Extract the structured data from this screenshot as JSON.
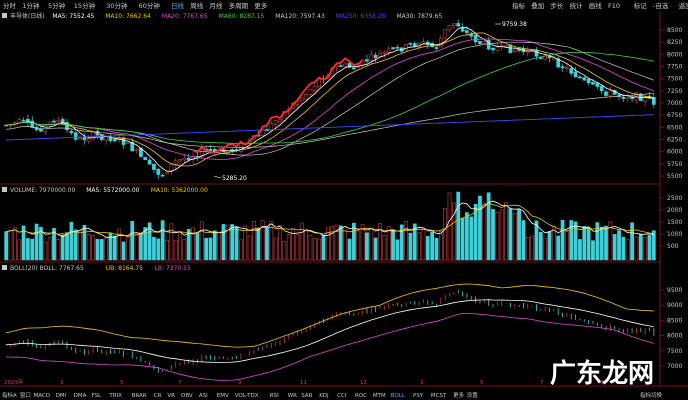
{
  "toolbar_left": {
    "items": [
      "分时",
      "1分钟",
      "5分钟",
      "15分钟",
      "30分钟",
      "60分钟",
      "日线",
      "周线",
      "月线",
      "多周期",
      "更多"
    ],
    "active": "日线"
  },
  "toolbar_right": {
    "items": [
      "指标",
      "叠加",
      "步长",
      "统计",
      "画线",
      "F10",
      "标记",
      "-自选",
      "返回"
    ]
  },
  "price_legend": {
    "label": "丰导体(日线)",
    "entries": [
      {
        "text": "MA5: 7552.45",
        "color": "#ffffff"
      },
      {
        "text": "MA10: 7662.64",
        "color": "#f3c800"
      },
      {
        "text": "MA20: 7767.65",
        "color": "#e04bd6"
      },
      {
        "text": "MA60: 8287.15",
        "color": "#3fd43f"
      },
      {
        "text": "MA120: 7597.43",
        "color": "#c8c8c8"
      },
      {
        "text": "MA250: 6358.28",
        "color": "#3b4cff"
      },
      {
        "text": "MA30: 7879.65",
        "color": "#c8c8c8"
      }
    ]
  },
  "price_axis": [
    "8500",
    "8250",
    "8000",
    "7750",
    "7500",
    "7250",
    "7000",
    "6750",
    "6500",
    "6250",
    "6000",
    "5750",
    "5500"
  ],
  "annotations": {
    "high": "9759.38",
    "low": "5285.20"
  },
  "volume_legend": {
    "entries": [
      {
        "text": "VOLUME: 7970000.00",
        "color": "#c8c8c8"
      },
      {
        "text": "MA5: 5572000.00",
        "color": "#ffffff"
      },
      {
        "text": "MA10: 5362000.00",
        "color": "#f3c800"
      }
    ]
  },
  "volume_axis": [
    "2500",
    "2000",
    "1500",
    "1000",
    "500"
  ],
  "boll_legend": {
    "entries": [
      {
        "text": "BOLL(20)  BOLL: 7767.65",
        "color": "#c8c8c8"
      },
      {
        "text": "UB: 8164.75",
        "color": "#f3c800"
      },
      {
        "text": "LB: 7370.55",
        "color": "#e04bd6"
      }
    ]
  },
  "boll_axis": [
    "9500",
    "9000",
    "8500",
    "8000",
    "7500",
    "7000"
  ],
  "bottom_tabs": [
    "指标A",
    "窗口",
    "MACD",
    "DMI",
    "DMA",
    "FSL",
    "TRIX",
    "BRAR",
    "CR",
    "VR",
    "OBV",
    "ASI",
    "EMV",
    "VOL-TDX",
    "RSI",
    "WR",
    "SAR",
    "KDJ",
    "CCI",
    "ROC",
    "MTM",
    "BOLL",
    "PSY",
    "MCST",
    "更多",
    "设置"
  ],
  "bottom_right": "指标切换",
  "date_axis": [
    "2023年",
    "3",
    "5",
    "7",
    "9",
    "11",
    "12",
    "3",
    "5",
    "7",
    "9"
  ],
  "watermark": "广东龙网",
  "colors": {
    "up": "#d43f3f",
    "down": "#3fd0d8",
    "bg": "#000000",
    "grid": "#7a1010"
  }
}
